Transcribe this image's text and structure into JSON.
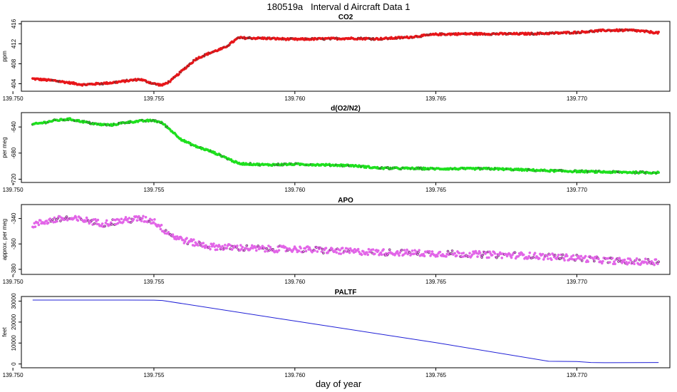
{
  "figure": {
    "title": "180519a   Interval d Aircraft Data 1",
    "xlabel": "day of year"
  },
  "chart_data": [
    {
      "type": "scatter",
      "title": "CO2",
      "ylabel": "ppm",
      "color": "#e8161a",
      "xlim": [
        139.7503,
        139.7733
      ],
      "ylim": [
        402.5,
        416.5
      ],
      "xticks": [
        "139.750",
        "139.755",
        "139.760",
        "139.765",
        "139.770"
      ],
      "yticks": [
        "404",
        "408",
        "412",
        "416"
      ],
      "series": [
        {
          "x": [
            139.7507,
            139.7515,
            139.7525,
            139.7535,
            139.7545,
            139.755,
            139.7553,
            139.7556,
            139.756,
            139.7565,
            139.757,
            139.7575,
            139.758,
            139.759,
            139.76,
            139.762,
            139.763,
            139.764,
            139.765,
            139.766,
            139.768,
            139.769,
            139.77,
            139.771,
            139.772,
            139.7729
          ],
          "y": [
            405.0,
            404.6,
            403.8,
            404.2,
            404.9,
            404.0,
            403.7,
            404.6,
            406.6,
            409.0,
            410.2,
            411.2,
            413.2,
            413.1,
            412.9,
            413.1,
            413.0,
            413.3,
            413.9,
            414.0,
            414.0,
            414.1,
            414.3,
            414.7,
            414.7,
            414.2
          ]
        }
      ]
    },
    {
      "type": "scatter",
      "title": "d(O2/N2)",
      "ylabel": "per meg",
      "color": "#1ee01e",
      "xlim": [
        139.7503,
        139.7733
      ],
      "ylim": [
        -725,
        -618
      ],
      "xticks": [
        "139.750",
        "139.755",
        "139.760",
        "139.765",
        "139.770"
      ],
      "yticks": [
        "-720",
        "-680",
        "-640"
      ],
      "series": [
        {
          "x": [
            139.7507,
            139.751,
            139.7515,
            139.752,
            139.7525,
            139.753,
            139.7535,
            139.754,
            139.7545,
            139.755,
            139.7553,
            139.7556,
            139.756,
            139.7565,
            139.757,
            139.7575,
            139.758,
            139.759,
            139.76,
            139.762,
            139.763,
            139.765,
            139.767,
            139.769,
            139.771,
            139.7729
          ],
          "y": [
            -636,
            -634,
            -630,
            -628,
            -632,
            -636,
            -637,
            -633,
            -631,
            -630,
            -634,
            -645,
            -660,
            -670,
            -677,
            -686,
            -696,
            -698,
            -697,
            -699,
            -703,
            -704,
            -704,
            -707,
            -709,
            -710
          ]
        }
      ]
    },
    {
      "type": "scatter",
      "title": "APO",
      "ylabel": "approx. per meg",
      "color": "#e265e8",
      "xlim": [
        139.7503,
        139.7733
      ],
      "ylim": [
        -384,
        -329
      ],
      "xticks": [
        "139.750",
        "139.755",
        "139.760",
        "139.765",
        "139.770"
      ],
      "yticks": [
        "-380",
        "-360",
        "-340"
      ],
      "series": [
        {
          "x": [
            139.7507,
            139.7512,
            139.7518,
            139.7525,
            139.7532,
            139.7538,
            139.7545,
            139.755,
            139.7553,
            139.7557,
            139.7562,
            139.757,
            139.758,
            139.759,
            139.76,
            139.762,
            139.764,
            139.766,
            139.768,
            139.77,
            139.771,
            139.772,
            139.7729
          ],
          "y": [
            -345,
            -342,
            -340,
            -341,
            -344,
            -342,
            -340,
            -342,
            -348,
            -354,
            -358,
            -362,
            -363,
            -364,
            -364,
            -366,
            -367,
            -368,
            -369,
            -371,
            -373,
            -374,
            -374
          ]
        }
      ]
    },
    {
      "type": "line",
      "title": "PALTF",
      "ylabel": "feet",
      "color": "#1f1fd6",
      "xlim": [
        139.7503,
        139.7733
      ],
      "ylim": [
        -1800,
        32200
      ],
      "xticks": [
        "139.750",
        "139.755",
        "139.760",
        "139.765",
        "139.770"
      ],
      "yticks": [
        "0",
        "10000",
        "20000",
        "30000"
      ],
      "series": [
        {
          "x": [
            139.7507,
            139.754,
            139.755,
            139.7553,
            139.76,
            139.765,
            139.769,
            139.77,
            139.7705,
            139.771,
            139.7729
          ],
          "y": [
            30500,
            30500,
            30450,
            30300,
            20500,
            10200,
            1300,
            1200,
            700,
            600,
            700
          ]
        }
      ]
    }
  ]
}
